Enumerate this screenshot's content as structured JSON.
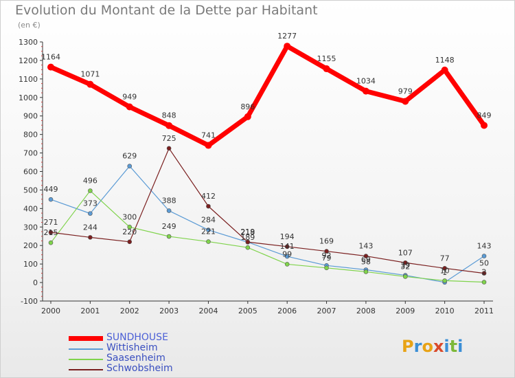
{
  "title": "Evolution du Montant de la Dette par Habitant",
  "subtitle": "(en €)",
  "logo": {
    "text": "Proxiti",
    "colors": [
      "#e8a316",
      "#3b8fd6",
      "#e8a316",
      "#d94a2b",
      "#3b8fd6",
      "#7db83a",
      "#3b8fd6"
    ]
  },
  "chart_data": {
    "type": "line",
    "title": "Evolution du Montant de la Dette par Habitant",
    "ylabel": "(en €)",
    "xlabel": "",
    "ylim": [
      -100,
      1300
    ],
    "yticks": [
      -100,
      0,
      100,
      200,
      300,
      400,
      500,
      600,
      700,
      800,
      900,
      1000,
      1100,
      1200,
      1300
    ],
    "categories": [
      "2000",
      "2001",
      "2002",
      "2003",
      "2004",
      "2005",
      "2006",
      "2007",
      "2008",
      "2009",
      "2010",
      "2011"
    ],
    "series": [
      {
        "name": "SUNDHOUSE",
        "color": "#ff0000",
        "values": [
          1164,
          1071,
          949,
          848,
          741,
          896,
          1277,
          1155,
          1034,
          979,
          1148,
          849
        ],
        "labels": [
          "1164",
          "1071",
          "949",
          "848",
          "741",
          "896",
          "1277",
          "1155",
          "1034",
          "979",
          "1148",
          "849"
        ]
      },
      {
        "name": "Wittisheim",
        "color": "#5b9bd5",
        "values": [
          449,
          373,
          629,
          388,
          284,
          218,
          141,
          92,
          69,
          39,
          1,
          143
        ],
        "labels": [
          "449",
          "373",
          "629",
          "388",
          "284",
          "218",
          "141",
          "92",
          "69",
          "39",
          "1",
          "143"
        ]
      },
      {
        "name": "Saasenheim",
        "color": "#7fd34b",
        "values": [
          215,
          496,
          300,
          249,
          221,
          189,
          99,
          79,
          58,
          32,
          10,
          2
        ],
        "labels": [
          "215",
          "496",
          "300",
          "249",
          "221",
          "189",
          "99",
          "79",
          "58",
          "32",
          "10",
          "2"
        ]
      },
      {
        "name": "Schwobsheim",
        "color": "#7a1f1f",
        "values": [
          271,
          244,
          220,
          725,
          412,
          219,
          194,
          169,
          143,
          107,
          77,
          50
        ],
        "labels": [
          "271",
          "244",
          "220",
          "725",
          "412",
          "219",
          "194",
          "169",
          "143",
          "107",
          "77",
          "50"
        ]
      }
    ],
    "legend_position": "bottom-left",
    "grid": false
  }
}
